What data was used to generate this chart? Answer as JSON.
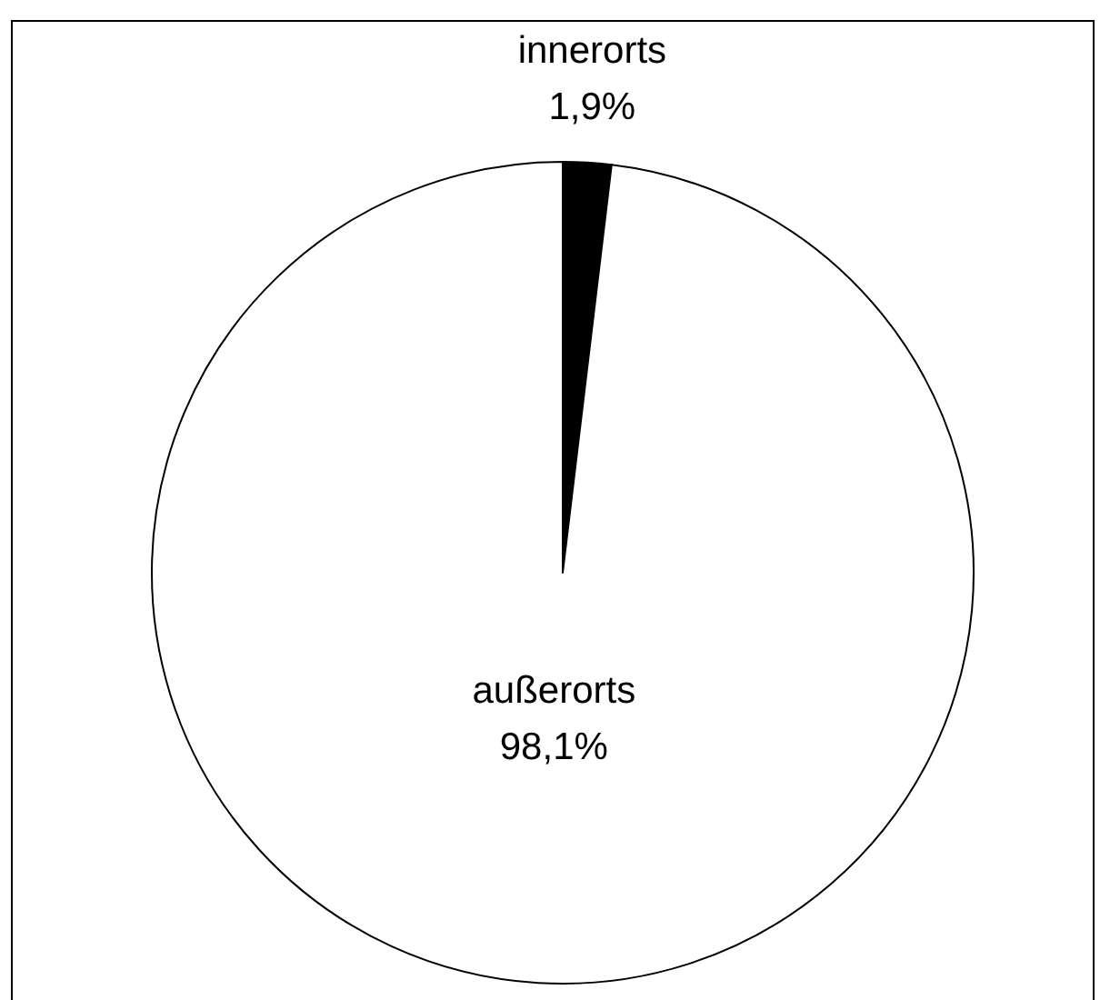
{
  "chart_data": {
    "type": "pie",
    "categories": [
      "innerorts",
      "außerorts"
    ],
    "values": [
      1.9,
      98.1
    ],
    "colors": [
      "#000000",
      "#ffffff"
    ],
    "value_labels": [
      "1,9%",
      "98,1%"
    ],
    "legend": false
  }
}
